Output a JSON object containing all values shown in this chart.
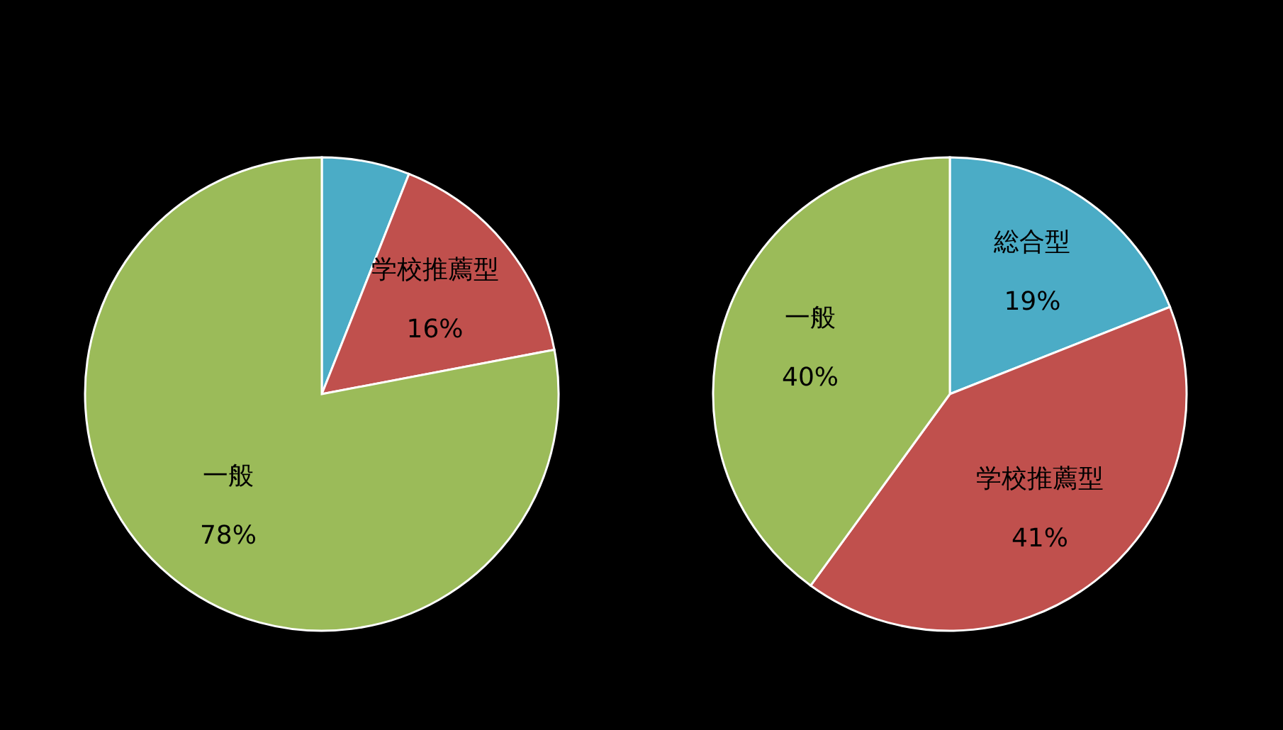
{
  "chart_data": [
    {
      "type": "pie",
      "categories": [
        null,
        "学校推薦型",
        "一般"
      ],
      "values": [
        6,
        16,
        78
      ],
      "colors": [
        "#4bacc6",
        "#c0504d",
        "#9bbb59"
      ],
      "value_labels": [
        null,
        "16%",
        "78%"
      ]
    },
    {
      "type": "pie",
      "categories": [
        "総合型",
        "学校推薦型",
        "一般"
      ],
      "values": [
        19,
        41,
        40
      ],
      "colors": [
        "#4bacc6",
        "#c0504d",
        "#9bbb59"
      ],
      "value_labels": [
        "19%",
        "41%",
        "40%"
      ]
    }
  ]
}
